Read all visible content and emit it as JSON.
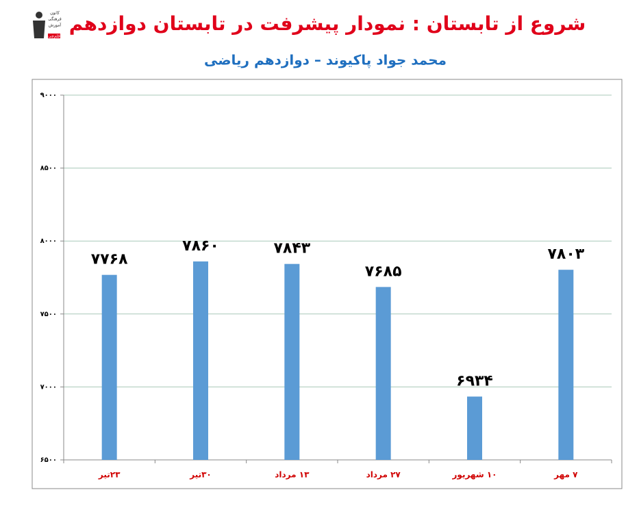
{
  "logo": {
    "lines": [
      "کانون",
      "فرهنگی",
      "آموزش",
      "قلم‌چی"
    ]
  },
  "chart_data": {
    "type": "bar",
    "title": "شروع از تابستان : نمودار پیشرفت در تابستان دوازدهم",
    "subtitle": "محمد جواد پاکیوند – دوازدهم ریاضی",
    "categories": [
      "۲۳تیر",
      "۳۰تیر",
      "۱۳ مرداد",
      "۲۷ مرداد",
      "۱۰ شهریور",
      "۷ مهر"
    ],
    "values": [
      7768,
      7860,
      7843,
      7685,
      6934,
      7803
    ],
    "value_labels": [
      "۷۷۶۸",
      "۷۸۶۰",
      "۷۸۴۳",
      "۷۶۸۵",
      "۶۹۳۴",
      "۷۸۰۳"
    ],
    "color": "#5b9bd5",
    "ylim": [
      6500,
      9000
    ],
    "yticks": [
      {
        "value": 6500,
        "label": "۶۵۰۰"
      },
      {
        "value": 7000,
        "label": "۷۰۰۰"
      },
      {
        "value": 7500,
        "label": "۷۵۰۰"
      },
      {
        "value": 8000,
        "label": "۸۰۰۰"
      },
      {
        "value": 8500,
        "label": "۸۵۰۰"
      },
      {
        "value": 9000,
        "label": "۹۰۰۰"
      }
    ],
    "grid": true
  }
}
